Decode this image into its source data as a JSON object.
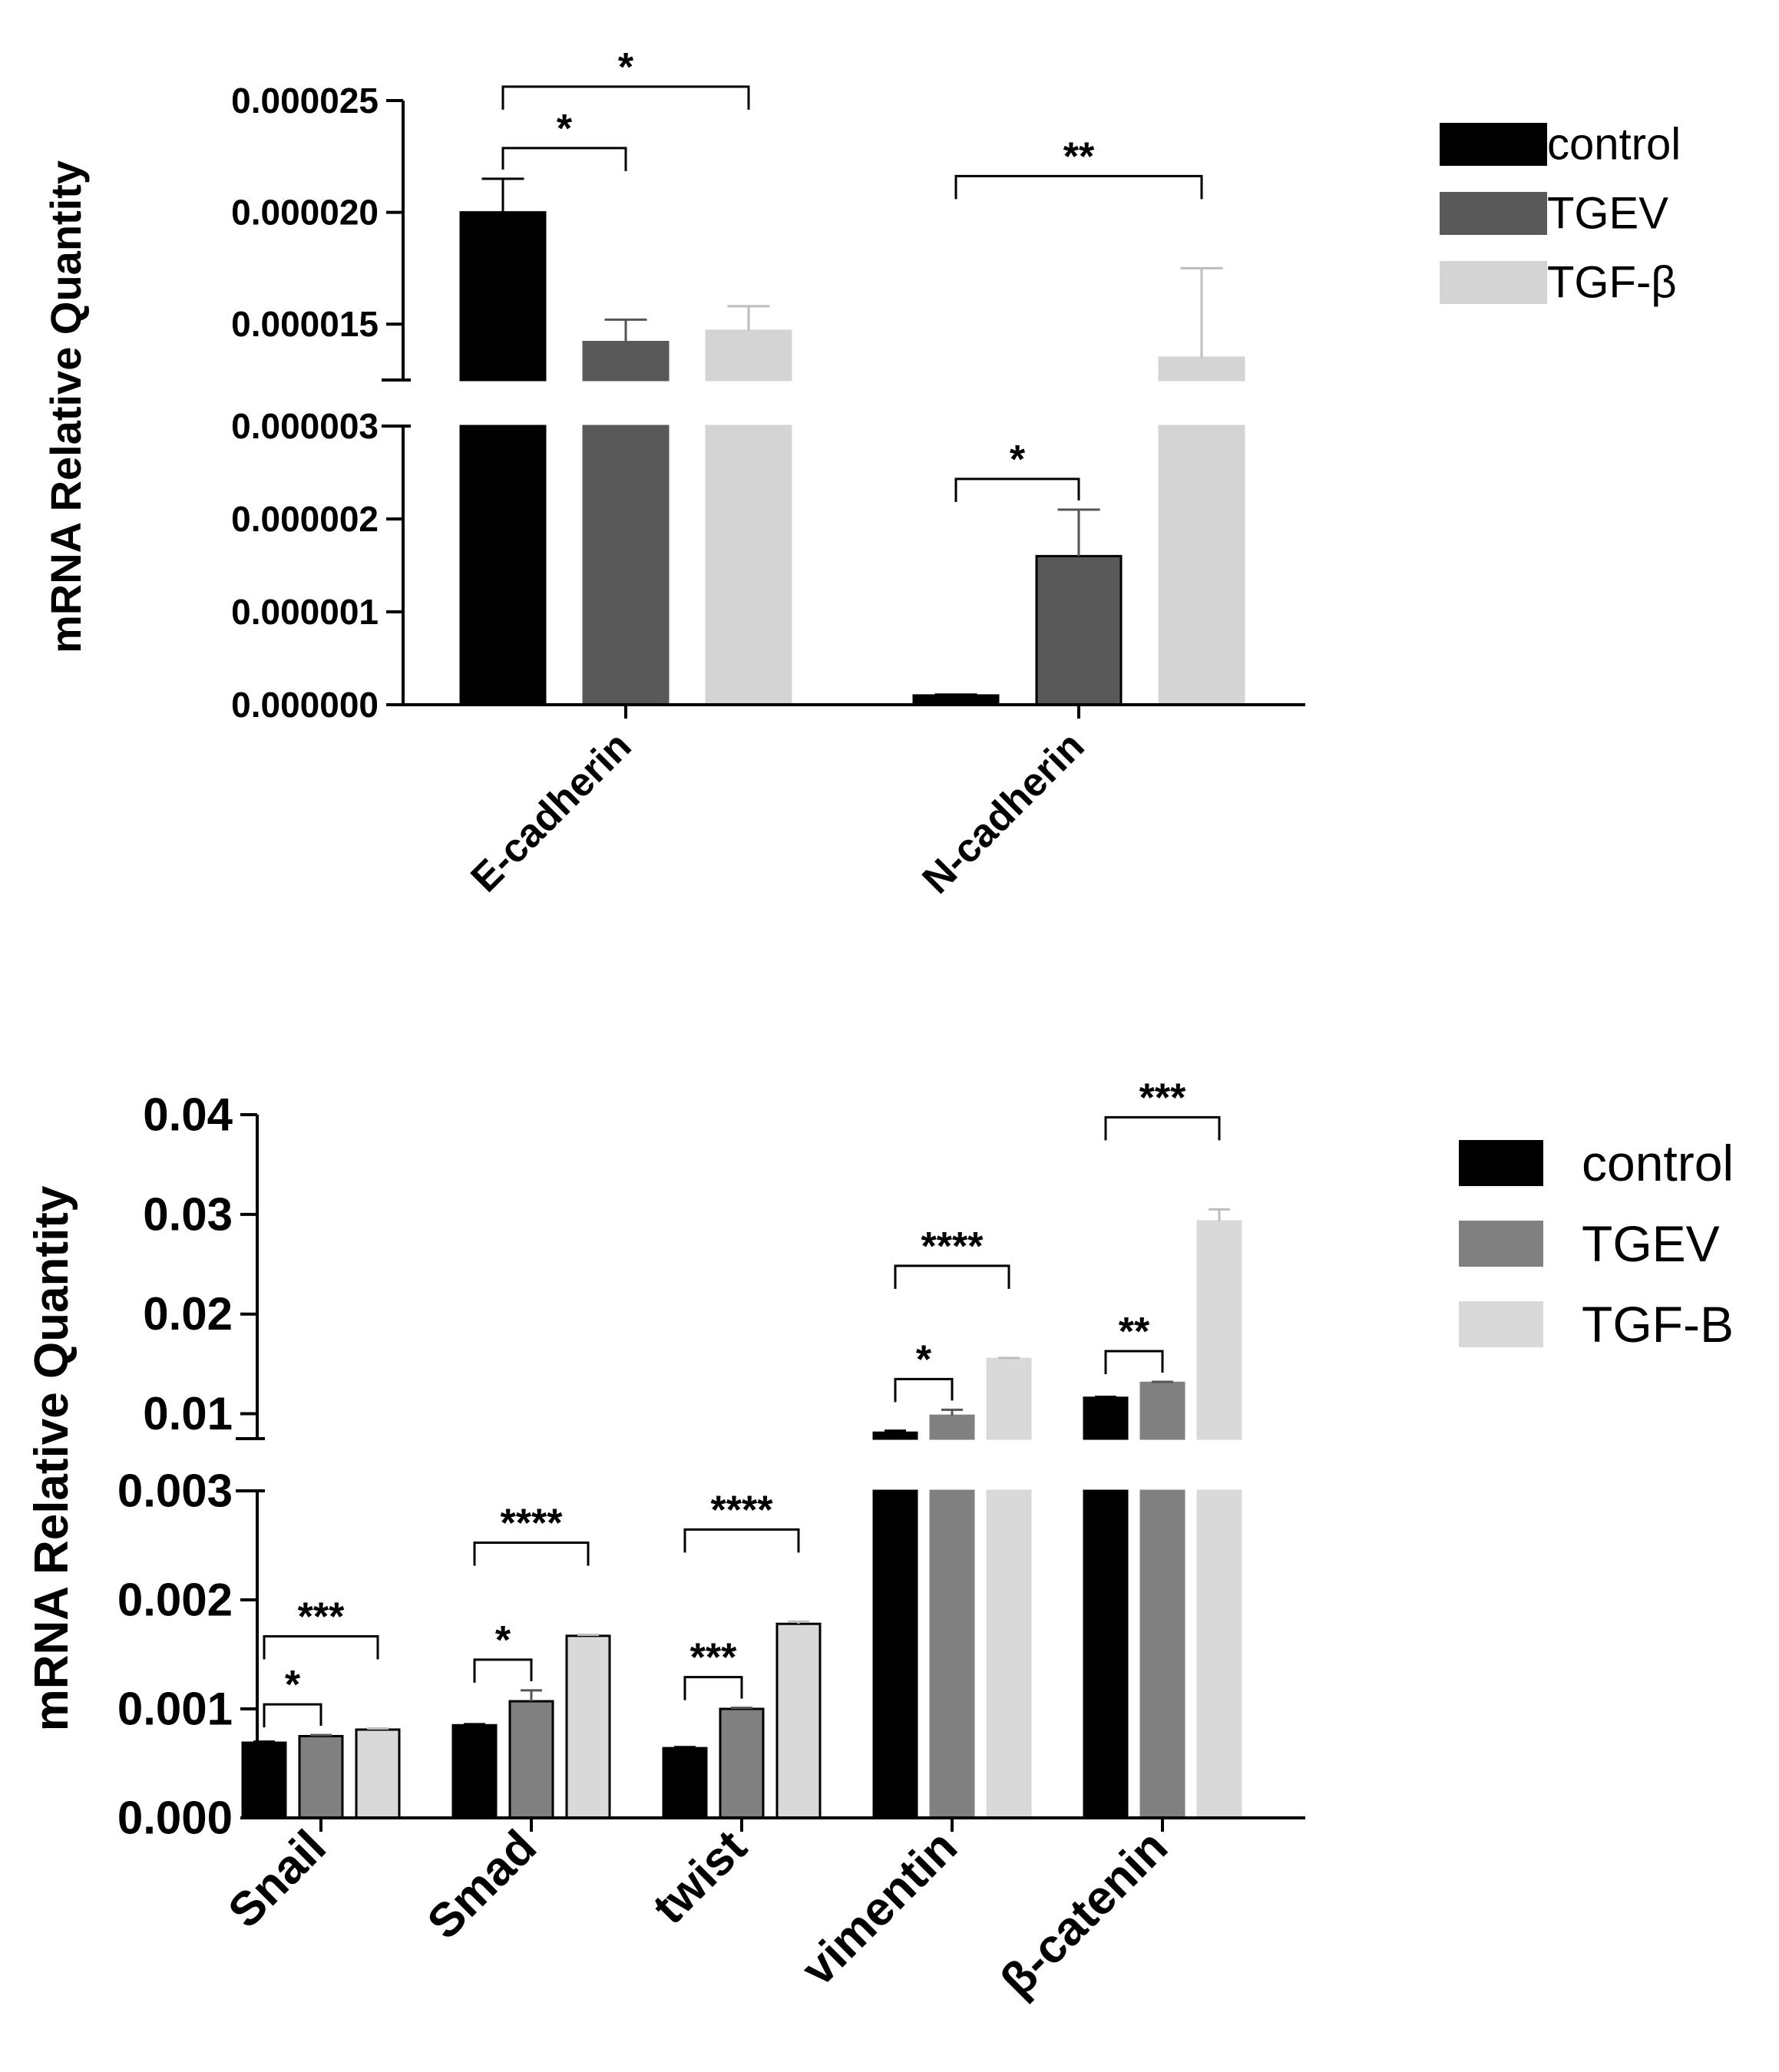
{
  "chart_data": [
    {
      "type": "bar",
      "title": "",
      "xlabel": "",
      "ylabel": "mRNA Relative Quantity",
      "categories": [
        "E-cadherin",
        "N-cadherin"
      ],
      "series": [
        {
          "name": "control",
          "color": "#000000",
          "values": [
            2e-05,
            1e-07
          ],
          "errors": [
            1.5e-06,
            1e-08
          ]
        },
        {
          "name": "TGEV",
          "color": "#595959",
          "values": [
            1.42e-05,
            1.6e-06
          ],
          "errors": [
            1e-06,
            5e-07
          ]
        },
        {
          "name": "TGF-β",
          "color": "#d4d4d4",
          "values": [
            1.47e-05,
            1.35e-05
          ],
          "errors": [
            1.1e-06,
            4e-06
          ]
        }
      ],
      "axis_segments": {
        "lower": {
          "range": [
            0,
            3e-06
          ],
          "ticks": [
            "0.000000",
            "0.000001",
            "0.000002",
            "0.000003"
          ]
        },
        "upper": {
          "range": [
            1.25e-05,
            2.5e-05
          ],
          "ticks": [
            "0.000015",
            "0.000020",
            "0.000025"
          ]
        }
      },
      "legend": [
        "control",
        "TGEV",
        "TGF-β"
      ],
      "legend_position": "top-right",
      "significance": [
        {
          "category": "E-cadherin",
          "from": "control",
          "to": "TGEV",
          "label": "*"
        },
        {
          "category": "E-cadherin",
          "from": "control",
          "to": "TGF-β",
          "label": "*"
        },
        {
          "category": "N-cadherin",
          "from": "control",
          "to": "TGEV",
          "label": "*"
        },
        {
          "category": "N-cadherin",
          "from": "control",
          "to": "TGF-β",
          "label": "**"
        }
      ]
    },
    {
      "type": "bar",
      "title": "",
      "xlabel": "",
      "ylabel": "mRNA Relative Quantity",
      "categories": [
        "Snail",
        "Smad",
        "twist",
        "vimentin",
        "β-catenin"
      ],
      "series": [
        {
          "name": "control",
          "color": "#000000",
          "values": [
            0.00069,
            0.00085,
            0.00064,
            0.0081,
            0.0116
          ],
          "errors": [
            1e-05,
            1e-05,
            1e-05,
            0.0002,
            0.0001
          ]
        },
        {
          "name": "TGEV",
          "color": "#808080",
          "values": [
            0.00075,
            0.00107,
            0.001,
            0.0098,
            0.0131
          ],
          "errors": [
            1e-05,
            0.0001,
            1e-05,
            0.0006,
            0.0001
          ]
        },
        {
          "name": "TGF-B",
          "color": "#d9d9d9",
          "values": [
            0.00081,
            0.00167,
            0.00178,
            0.0155,
            0.0293
          ],
          "errors": [
            1e-05,
            1e-05,
            2e-05,
            0.0001,
            0.0012
          ]
        }
      ],
      "axis_segments": {
        "lower": {
          "range": [
            0,
            0.003
          ],
          "ticks": [
            "0.000",
            "0.001",
            "0.002",
            "0.003"
          ]
        },
        "upper": {
          "range": [
            0.0075,
            0.04
          ],
          "ticks": [
            "0.01",
            "0.02",
            "0.03",
            "0.04"
          ]
        }
      },
      "legend": [
        "control",
        "TGEV",
        "TGF-B"
      ],
      "legend_position": "top-right",
      "significance": [
        {
          "category": "Snail",
          "from": "control",
          "to": "TGEV",
          "label": "*"
        },
        {
          "category": "Snail",
          "from": "control",
          "to": "TGF-B",
          "label": "***"
        },
        {
          "category": "Smad",
          "from": "control",
          "to": "TGEV",
          "label": "*"
        },
        {
          "category": "Smad",
          "from": "control",
          "to": "TGF-B",
          "label": "****"
        },
        {
          "category": "twist",
          "from": "control",
          "to": "TGEV",
          "label": "***"
        },
        {
          "category": "twist",
          "from": "control",
          "to": "TGF-B",
          "label": "****"
        },
        {
          "category": "vimentin",
          "from": "control",
          "to": "TGEV",
          "label": "*"
        },
        {
          "category": "vimentin",
          "from": "control",
          "to": "TGF-B",
          "label": "****"
        },
        {
          "category": "β-catenin",
          "from": "control",
          "to": "TGEV",
          "label": "**"
        },
        {
          "category": "β-catenin",
          "from": "control",
          "to": "TGF-B",
          "label": "***"
        }
      ]
    }
  ]
}
